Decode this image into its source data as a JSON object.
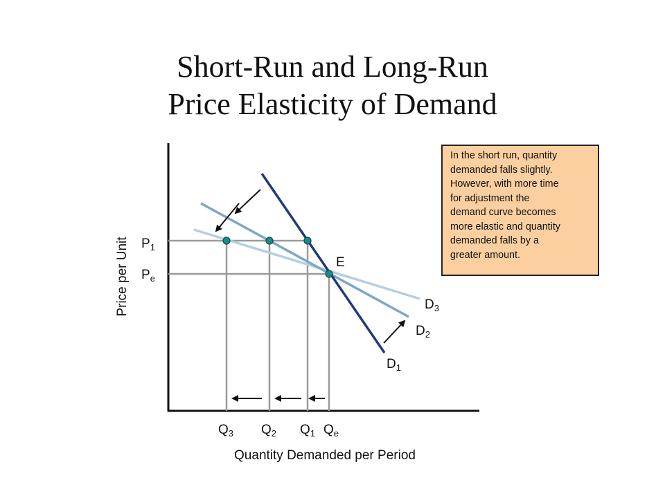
{
  "title": {
    "line1": "Short-Run and Long-Run",
    "line2": "Price Elasticity of Demand"
  },
  "axes": {
    "ylabel": "Price per Unit",
    "xlabel": "Quantity Demanded per Period"
  },
  "price_labels": {
    "p1": {
      "main": "P",
      "sub": "1"
    },
    "pe": {
      "main": "P",
      "sub": "e"
    }
  },
  "quantity_labels": {
    "q3": {
      "main": "Q",
      "sub": "3"
    },
    "q2": {
      "main": "Q",
      "sub": "2"
    },
    "q1": {
      "main": "Q",
      "sub": "1"
    },
    "qe": {
      "main": "Q",
      "sub": "e"
    }
  },
  "curves": {
    "d1": {
      "main": "D",
      "sub": "1",
      "color": "#1f3a7a"
    },
    "d2": {
      "main": "D",
      "sub": "2",
      "color": "#7da7c4"
    },
    "d3": {
      "main": "D",
      "sub": "3",
      "color": "#b3cfe0"
    }
  },
  "equilibrium_label": "E",
  "point_color": "#1f8a86",
  "note": {
    "lines": [
      "In the short run, quantity",
      "demanded falls slightly.",
      "However, with more time",
      "for adjustment the",
      "demand curve becomes",
      "more elastic and quantity",
      "demanded falls by a",
      "greater amount."
    ],
    "background": "#fbcf9f"
  }
}
